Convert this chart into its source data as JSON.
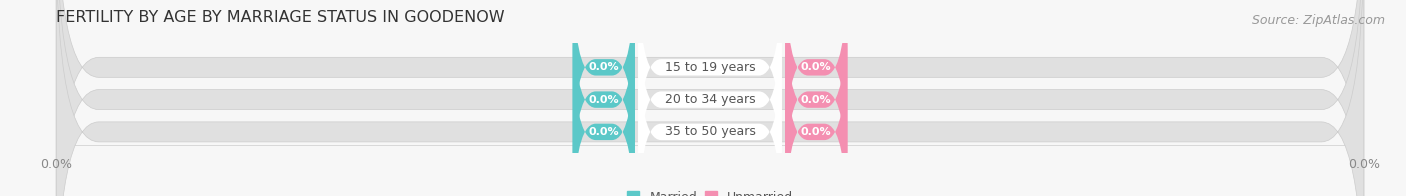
{
  "title": "FERTILITY BY AGE BY MARRIAGE STATUS IN GOODENOW",
  "source": "Source: ZipAtlas.com",
  "age_groups": [
    "15 to 19 years",
    "20 to 34 years",
    "35 to 50 years"
  ],
  "married_values": [
    0.0,
    0.0,
    0.0
  ],
  "unmarried_values": [
    0.0,
    0.0,
    0.0
  ],
  "married_color": "#5bc8c8",
  "unmarried_color": "#f48fb1",
  "bar_bg_color": "#e0e0e0",
  "label_bg_color": "#ffffff",
  "left_axis_label": "0.0%",
  "right_axis_label": "0.0%",
  "title_fontsize": 11.5,
  "source_fontsize": 9,
  "axis_tick_fontsize": 9,
  "age_label_fontsize": 9,
  "value_label_fontsize": 8,
  "legend_fontsize": 9,
  "background_color": "#f7f7f7",
  "text_color": "#555555",
  "axis_color": "#aaaaaa"
}
